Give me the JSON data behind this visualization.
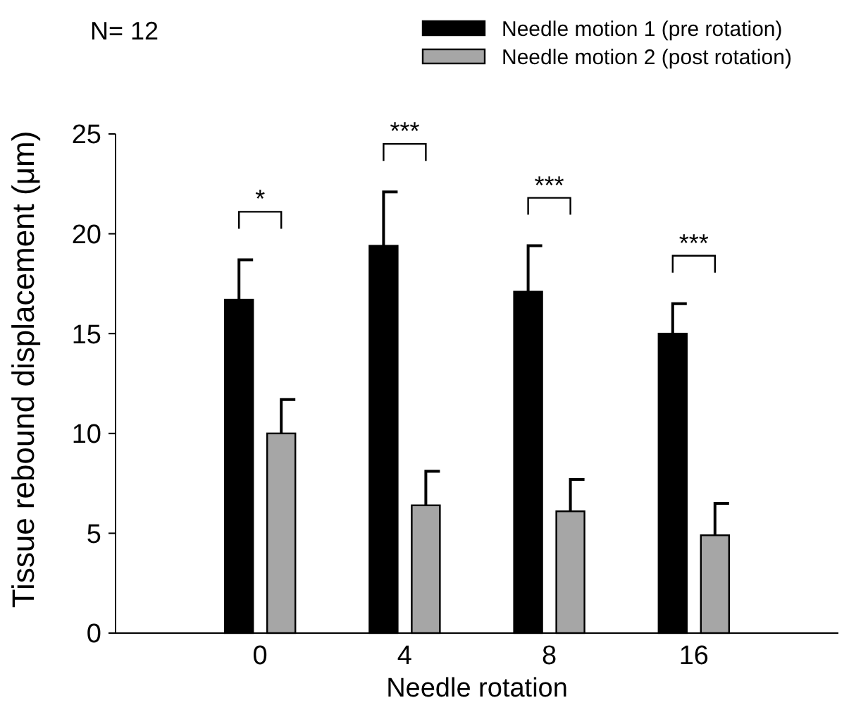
{
  "chart_data": {
    "type": "bar",
    "xlabel": "Needle rotation",
    "ylabel": "Tissue rebound displacement (μm)",
    "categories": [
      "0",
      "4",
      "8",
      "16"
    ],
    "series": [
      {
        "name": "Needle motion 1 (pre rotation)",
        "color": "#000000",
        "values": [
          16.7,
          19.4,
          17.1,
          15.0
        ],
        "errors": [
          [
            16.7,
            18.7
          ],
          [
            19.4,
            22.1
          ],
          [
            17.1,
            19.4
          ],
          [
            15.0,
            16.5
          ]
        ]
      },
      {
        "name": "Needle motion 2 (post rotation)",
        "color": "#a6a6a6",
        "values": [
          10.0,
          6.4,
          6.1,
          4.9
        ],
        "errors": [
          [
            10.0,
            11.7
          ],
          [
            6.4,
            8.1
          ],
          [
            6.1,
            7.7
          ],
          [
            4.9,
            6.5
          ]
        ]
      }
    ],
    "ylim": [
      0,
      25
    ],
    "yticks": [
      0,
      5,
      10,
      15,
      20,
      25
    ],
    "grid": false,
    "legend": "top right",
    "annotations": [
      "N= 12",
      "*",
      "***",
      "***",
      "***"
    ]
  }
}
